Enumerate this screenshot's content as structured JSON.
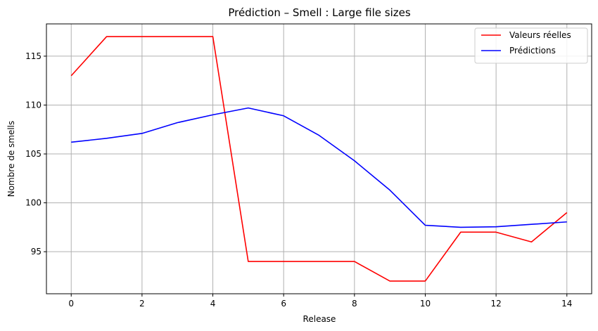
{
  "chart_data": {
    "type": "line",
    "title": "Prédiction – Smell : Large file sizes",
    "xlabel": "Release",
    "ylabel": "Nombre de smells",
    "x": [
      0,
      1,
      2,
      3,
      4,
      5,
      6,
      7,
      8,
      9,
      10,
      11,
      12,
      13,
      14
    ],
    "xlim": [
      -0.7,
      14.7
    ],
    "ylim": [
      90.7,
      118.3
    ],
    "xticks": [
      0,
      2,
      4,
      6,
      8,
      10,
      12,
      14
    ],
    "yticks": [
      95,
      100,
      105,
      110,
      115
    ],
    "grid": true,
    "legend_position": "top-right",
    "series": [
      {
        "name": "Valeurs réelles",
        "color": "#ff0000",
        "values": [
          113,
          117,
          117,
          117,
          117,
          94,
          94,
          94,
          94,
          92,
          92,
          97,
          97,
          96,
          99
        ]
      },
      {
        "name": "Prédictions",
        "color": "#0000ff",
        "values": [
          106.2,
          106.6,
          107.1,
          108.2,
          109.0,
          109.7,
          108.9,
          106.9,
          104.3,
          101.3,
          97.7,
          97.5,
          97.55,
          97.8,
          98.05
        ]
      }
    ]
  }
}
